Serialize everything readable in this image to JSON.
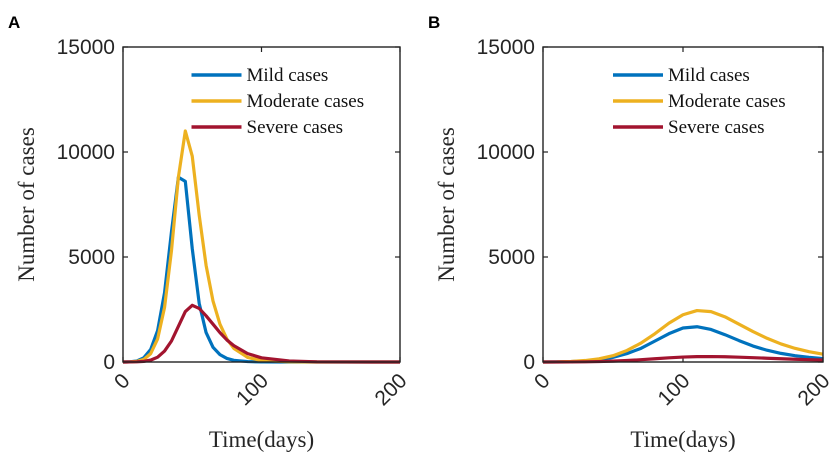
{
  "chart_data": [
    {
      "type": "line",
      "panel_label": "A",
      "xlabel": "Time(days)",
      "ylabel": "Number of cases",
      "x": [
        0,
        5,
        10,
        15,
        20,
        25,
        30,
        35,
        40,
        45,
        50,
        55,
        60,
        65,
        70,
        75,
        80,
        90,
        100,
        120,
        140,
        160,
        180,
        200
      ],
      "series": [
        {
          "name": "Mild cases",
          "color": "#0072bd",
          "values": [
            0,
            10,
            50,
            200,
            600,
            1500,
            3300,
            6200,
            8800,
            8600,
            5400,
            2800,
            1400,
            700,
            350,
            170,
            80,
            20,
            5,
            0,
            0,
            0,
            0,
            0
          ]
        },
        {
          "name": "Moderate cases",
          "color": "#edb120",
          "values": [
            0,
            5,
            30,
            120,
            400,
            1100,
            2600,
            5300,
            8800,
            11000,
            9800,
            7000,
            4600,
            2900,
            1800,
            1100,
            650,
            220,
            70,
            8,
            0,
            0,
            0,
            0
          ]
        },
        {
          "name": "Severe cases",
          "color": "#a2142f",
          "values": [
            0,
            2,
            8,
            30,
            90,
            230,
            520,
            1000,
            1700,
            2400,
            2700,
            2550,
            2200,
            1800,
            1400,
            1050,
            780,
            400,
            200,
            50,
            10,
            2,
            0,
            0
          ]
        }
      ],
      "xlim": [
        0,
        200
      ],
      "xticks": [
        0,
        100,
        200
      ],
      "ylim": [
        0,
        15000
      ],
      "yticks": [
        0,
        5000,
        10000,
        15000
      ],
      "legend": "north"
    },
    {
      "type": "line",
      "panel_label": "B",
      "xlabel": "Time(days)",
      "ylabel": "Number of cases",
      "x": [
        0,
        10,
        20,
        30,
        40,
        50,
        60,
        70,
        80,
        90,
        100,
        110,
        120,
        130,
        140,
        150,
        160,
        170,
        180,
        190,
        200
      ],
      "series": [
        {
          "name": "Mild cases",
          "color": "#0072bd",
          "values": [
            0,
            5,
            20,
            50,
            110,
            220,
            400,
            650,
            1000,
            1350,
            1620,
            1680,
            1550,
            1300,
            1020,
            760,
            560,
            410,
            300,
            220,
            160
          ]
        },
        {
          "name": "Moderate cases",
          "color": "#edb120",
          "values": [
            0,
            5,
            25,
            70,
            150,
            300,
            550,
            900,
            1350,
            1850,
            2250,
            2450,
            2400,
            2150,
            1800,
            1450,
            1130,
            860,
            650,
            490,
            370
          ]
        },
        {
          "name": "Severe cases",
          "color": "#a2142f",
          "values": [
            0,
            1,
            4,
            10,
            22,
            42,
            70,
            110,
            155,
            200,
            235,
            255,
            260,
            250,
            230,
            205,
            180,
            155,
            130,
            110,
            95
          ]
        }
      ],
      "xlim": [
        0,
        200
      ],
      "xticks": [
        0,
        100,
        200
      ],
      "ylim": [
        0,
        15000
      ],
      "yticks": [
        0,
        5000,
        10000,
        15000
      ],
      "legend": "north"
    }
  ]
}
